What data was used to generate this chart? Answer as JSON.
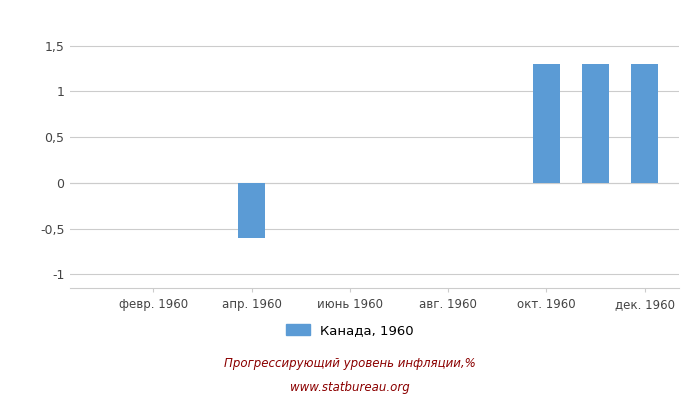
{
  "month_positions": [
    1,
    3,
    5,
    7,
    9,
    11
  ],
  "month_labels": [
    "февр. 1960",
    "апр. 1960",
    "июнь 1960",
    "авг. 1960",
    "окт. 1960",
    "дек. 1960"
  ],
  "values": [
    0,
    0,
    0,
    -0.6,
    0,
    0,
    0,
    0,
    0,
    1.3,
    1.3,
    1.3
  ],
  "bar_color": "#5B9BD5",
  "ylim": [
    -1.15,
    1.65
  ],
  "yticks": [
    -1,
    -0.5,
    0,
    0.5,
    1,
    1.5
  ],
  "ytick_labels": [
    "-1",
    "-0,5",
    "0",
    "0,5",
    "1",
    "1,5"
  ],
  "legend_label": "Канада, 1960",
  "footer_line1": "Прогрессирующий уровень инфляции,%",
  "footer_line2": "www.statbureau.org",
  "footer_color": "#8B0000",
  "background_color": "#ffffff",
  "grid_color": "#cccccc",
  "bar_width": 0.55
}
